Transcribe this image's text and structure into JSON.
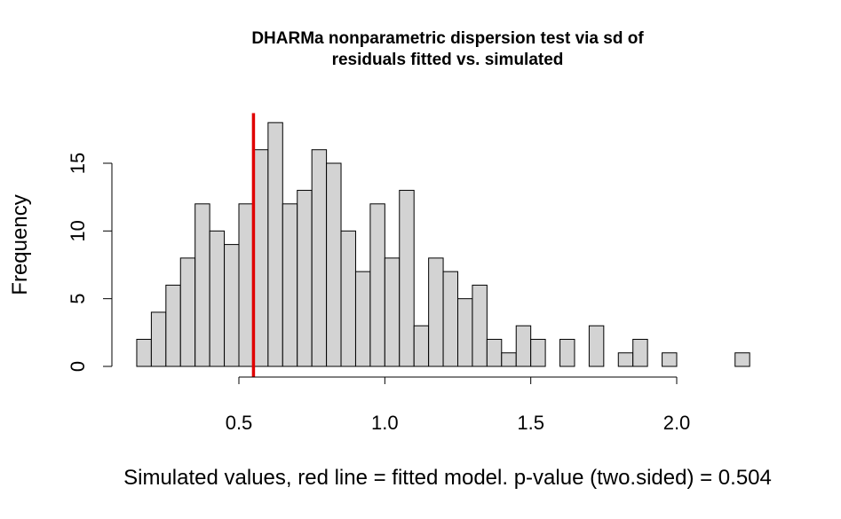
{
  "chart_data": {
    "type": "bar",
    "title_lines": [
      "DHARMa nonparametric dispersion test via sd of",
      "residuals fitted vs. simulated"
    ],
    "xlabel": "Simulated values, red line = fitted model. p-value (two.sided) = 0.504",
    "ylabel": "Frequency",
    "bin_width": 0.05,
    "bin_start": 0.15,
    "counts": [
      2,
      4,
      6,
      8,
      12,
      10,
      9,
      12,
      16,
      18,
      12,
      13,
      16,
      15,
      10,
      7,
      12,
      8,
      13,
      3,
      8,
      7,
      5,
      6,
      2,
      1,
      3,
      2,
      0,
      2,
      0,
      3,
      0,
      1,
      2,
      0,
      1,
      0,
      0,
      0,
      0,
      1
    ],
    "fitted_value": 0.55,
    "xlim": [
      0.15,
      2.3
    ],
    "ylim": [
      0,
      18.7
    ],
    "x_ticks": [
      0.5,
      1.0,
      1.5,
      2.0
    ],
    "x_tick_labels": [
      "0.5",
      "1.0",
      "1.5",
      "2.0"
    ],
    "y_ticks": [
      0,
      5,
      10,
      15
    ],
    "y_tick_labels": [
      "0",
      "5",
      "10",
      "15"
    ],
    "colors": {
      "bar_fill": "#d3d3d3",
      "bar_stroke": "#000000",
      "ref_line": "#e00000"
    }
  }
}
